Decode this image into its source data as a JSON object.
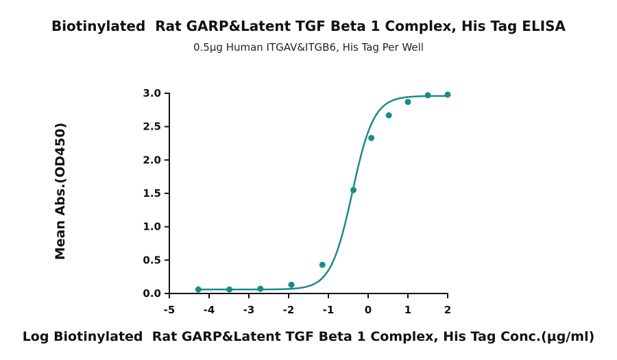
{
  "chart_data": {
    "type": "scatter",
    "title": "Biotinylated  Rat GARP&Latent TGF Beta 1 Complex, His Tag ELISA",
    "subtitle": "0.5µg Human ITGAV&ITGB6, His Tag Per Well",
    "xlabel": "Log Biotinylated  Rat GARP&Latent TGF Beta 1 Complex, His Tag Conc.(µg/ml)",
    "ylabel": "Mean Abs.(OD450)",
    "xlim": [
      -5,
      2
    ],
    "ylim": [
      0,
      3.0
    ],
    "x_ticks": [
      "-5",
      "-4",
      "-3",
      "-2",
      "-1",
      "0",
      "1",
      "2"
    ],
    "y_ticks": [
      "0.0",
      "0.5",
      "1.0",
      "1.5",
      "2.0",
      "2.5",
      "3.0"
    ],
    "grid": false,
    "color": "#1a8a8a",
    "series": [
      {
        "points": [
          {
            "x": -4.27,
            "y": 0.06
          },
          {
            "x": -3.49,
            "y": 0.06
          },
          {
            "x": -2.71,
            "y": 0.07
          },
          {
            "x": -1.93,
            "y": 0.13
          },
          {
            "x": -1.15,
            "y": 0.43
          },
          {
            "x": -0.37,
            "y": 1.55
          },
          {
            "x": 0.08,
            "y": 2.33
          },
          {
            "x": 0.52,
            "y": 2.67
          },
          {
            "x": 1.0,
            "y": 2.87
          },
          {
            "x": 1.5,
            "y": 2.97
          },
          {
            "x": 2.0,
            "y": 2.98
          }
        ],
        "fit": {
          "model": "4PL",
          "bottom": 0.06,
          "top": 2.96,
          "logEC50": -0.4,
          "hill": 1.6
        }
      }
    ]
  }
}
